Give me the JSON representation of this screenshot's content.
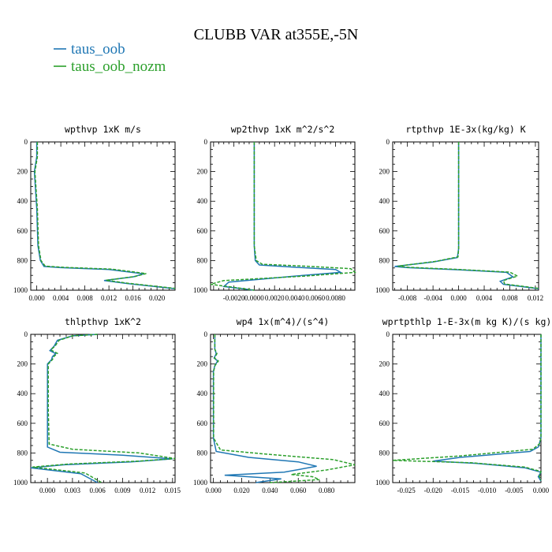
{
  "figure_title": "CLUBB VAR at355E,-5N",
  "colors": {
    "taus_oob": "#1f77b4",
    "taus_oob_nozm": "#2ca02c"
  },
  "legend": [
    {
      "label": "taus_oob",
      "color": "#1f77b4",
      "dashed": false
    },
    {
      "label": "taus_oob_nozm",
      "color": "#2ca02c",
      "dashed": true
    }
  ],
  "chart_data": [
    {
      "type": "line",
      "title": "wpthvp  1xK m/s",
      "xlim": [
        -0.001,
        0.023
      ],
      "ylim": [
        1000,
        0
      ],
      "x_ticks": [
        "0.000",
        "0.004",
        "0.008",
        "0.012",
        "0.016",
        "0.020"
      ],
      "x_tick_values": [
        0,
        0.004,
        0.008,
        0.012,
        0.016,
        0.02
      ],
      "y_ticks": [
        "0",
        "200",
        "400",
        "600",
        "800",
        "1000"
      ],
      "series": [
        {
          "name": "taus_oob",
          "points": [
            [
              0.0,
              0
            ],
            [
              0.0,
              100
            ],
            [
              -0.0004,
              200
            ],
            [
              0.0,
              450
            ],
            [
              0.0002,
              700
            ],
            [
              0.0006,
              800
            ],
            [
              0.0012,
              840
            ],
            [
              0.004,
              848
            ],
            [
              0.012,
              860
            ],
            [
              0.0178,
              890
            ],
            [
              0.016,
              910
            ],
            [
              0.0112,
              935
            ],
            [
              0.015,
              955
            ],
            [
              0.023,
              990
            ]
          ]
        },
        {
          "name": "taus_oob_nozm",
          "points": [
            [
              0.0001,
              0
            ],
            [
              0.0001,
              100
            ],
            [
              -0.0003,
              200
            ],
            [
              0.0001,
              450
            ],
            [
              0.0003,
              700
            ],
            [
              0.0007,
              800
            ],
            [
              0.0014,
              838
            ],
            [
              0.0045,
              846
            ],
            [
              0.0125,
              858
            ],
            [
              0.0182,
              888
            ],
            [
              0.0163,
              908
            ],
            [
              0.0115,
              933
            ],
            [
              0.0152,
              953
            ],
            [
              0.023,
              988
            ]
          ]
        }
      ]
    },
    {
      "type": "line",
      "title": "wp2thvp  1xK m^2/s^2",
      "xlim": [
        -0.0043,
        0.0099
      ],
      "ylim": [
        1000,
        0
      ],
      "x_ticks": [
        "-0.0020",
        "0.0000",
        "0.0020",
        "0.0040",
        "0.0060",
        "0.0080"
      ],
      "x_tick_values": [
        -0.002,
        0,
        0.002,
        0.004,
        0.006,
        0.008
      ],
      "y_ticks": [
        "0",
        "200",
        "400",
        "600",
        "800",
        "1000"
      ],
      "series": [
        {
          "name": "taus_oob",
          "points": [
            [
              0.0,
              0
            ],
            [
              0.0,
              400
            ],
            [
              0.0,
              700
            ],
            [
              0.0001,
              800
            ],
            [
              0.0005,
              830
            ],
            [
              0.004,
              845
            ],
            [
              0.008,
              860
            ],
            [
              0.0085,
              880
            ],
            [
              0.004,
              905
            ],
            [
              -0.0025,
              945
            ],
            [
              -0.003,
              975
            ],
            [
              0.0,
              1000
            ]
          ]
        },
        {
          "name": "taus_oob_nozm",
          "points": [
            [
              0.0,
              0
            ],
            [
              0.0,
              400
            ],
            [
              0.0,
              700
            ],
            [
              0.0002,
              800
            ],
            [
              0.0008,
              825
            ],
            [
              0.005,
              838
            ],
            [
              0.0095,
              855
            ],
            [
              0.0099,
              880
            ],
            [
              0.005,
              905
            ],
            [
              -0.003,
              935
            ],
            [
              -0.0043,
              960
            ],
            [
              -0.001,
              990
            ],
            [
              0.0,
              1000
            ]
          ]
        }
      ]
    },
    {
      "type": "line",
      "title": "rtpthvp  1E-3x(kg/kg) K",
      "xlim": [
        -0.0103,
        0.0125
      ],
      "ylim": [
        1000,
        0
      ],
      "x_ticks": [
        "-0.008",
        "-0.004",
        "0.000",
        "0.004",
        "0.008",
        "0.012"
      ],
      "x_tick_values": [
        -0.008,
        -0.004,
        0,
        0.004,
        0.008,
        0.012
      ],
      "y_ticks": [
        "0",
        "200",
        "400",
        "600",
        "800",
        "1000"
      ],
      "series": [
        {
          "name": "taus_oob",
          "points": [
            [
              0.0,
              0
            ],
            [
              0.0,
              400
            ],
            [
              0.0,
              720
            ],
            [
              -0.0002,
              780
            ],
            [
              -0.004,
              810
            ],
            [
              -0.01,
              840
            ],
            [
              -0.008,
              848
            ],
            [
              0.0,
              862
            ],
            [
              0.0075,
              880
            ],
            [
              0.0085,
              910
            ],
            [
              0.0065,
              940
            ],
            [
              0.007,
              960
            ],
            [
              0.0125,
              990
            ]
          ]
        },
        {
          "name": "taus_oob_nozm",
          "points": [
            [
              0.0,
              0
            ],
            [
              0.0,
              400
            ],
            [
              0.0,
              720
            ],
            [
              -0.0001,
              775
            ],
            [
              -0.0035,
              805
            ],
            [
              -0.0095,
              838
            ],
            [
              -0.0078,
              846
            ],
            [
              0.0,
              860
            ],
            [
              0.008,
              878
            ],
            [
              0.0092,
              905
            ],
            [
              0.007,
              935
            ],
            [
              0.0072,
              958
            ],
            [
              0.0125,
              988
            ]
          ]
        }
      ]
    },
    {
      "type": "line",
      "title": "thlpthvp  1xK^2",
      "xlim": [
        -0.002,
        0.0153
      ],
      "ylim": [
        1000,
        0
      ],
      "x_ticks": [
        "0.000",
        "0.003",
        "0.006",
        "0.009",
        "0.012",
        "0.015"
      ],
      "x_tick_values": [
        0,
        0.003,
        0.006,
        0.009,
        0.012,
        0.015
      ],
      "y_ticks": [
        "0",
        "200",
        "400",
        "600",
        "800",
        "1000"
      ],
      "series": [
        {
          "name": "taus_oob",
          "points": [
            [
              0.006,
              0
            ],
            [
              0.003,
              10
            ],
            [
              0.0012,
              40
            ],
            [
              0.0008,
              80
            ],
            [
              0.0003,
              110
            ],
            [
              0.001,
              130
            ],
            [
              0.0006,
              150
            ],
            [
              0.0005,
              170
            ],
            [
              0.0,
              200
            ],
            [
              0.0,
              500
            ],
            [
              0.0,
              760
            ],
            [
              0.0015,
              795
            ],
            [
              0.009,
              815
            ],
            [
              0.015,
              840
            ],
            [
              0.01,
              860
            ],
            [
              0.002,
              880
            ],
            [
              -0.002,
              900
            ],
            [
              0.004,
              940
            ],
            [
              0.006,
              1000
            ]
          ]
        },
        {
          "name": "taus_oob_nozm",
          "points": [
            [
              0.006,
              0
            ],
            [
              0.003,
              10
            ],
            [
              0.0014,
              40
            ],
            [
              0.0009,
              80
            ],
            [
              0.0004,
              105
            ],
            [
              0.0012,
              128
            ],
            [
              0.0008,
              148
            ],
            [
              0.0006,
              170
            ],
            [
              0.0001,
              200
            ],
            [
              0.0001,
              500
            ],
            [
              0.0002,
              740
            ],
            [
              0.003,
              775
            ],
            [
              0.011,
              800
            ],
            [
              0.0153,
              838
            ],
            [
              0.011,
              855
            ],
            [
              0.0025,
              875
            ],
            [
              -0.0018,
              895
            ],
            [
              0.0045,
              935
            ],
            [
              0.0065,
              1000
            ]
          ]
        }
      ]
    },
    {
      "type": "line",
      "title": "wp4  1x(m^4)/(s^4)",
      "xlim": [
        -0.002,
        0.1
      ],
      "ylim": [
        1000,
        0
      ],
      "x_ticks": [
        "0.000",
        "0.020",
        "0.040",
        "0.060",
        "0.080"
      ],
      "x_tick_values": [
        0,
        0.02,
        0.04,
        0.06,
        0.08
      ],
      "y_ticks": [
        "0",
        "200",
        "400",
        "600",
        "800",
        "1000"
      ],
      "series": [
        {
          "name": "taus_oob",
          "points": [
            [
              0.001,
              0
            ],
            [
              0.001,
              100
            ],
            [
              0.002,
              130
            ],
            [
              0.0005,
              160
            ],
            [
              0.003,
              180
            ],
            [
              0.001,
              210
            ],
            [
              0.0,
              250
            ],
            [
              0.0,
              700
            ],
            [
              0.002,
              790
            ],
            [
              0.025,
              830
            ],
            [
              0.06,
              860
            ],
            [
              0.073,
              890
            ],
            [
              0.05,
              930
            ],
            [
              0.008,
              950
            ],
            [
              0.048,
              975
            ],
            [
              0.03,
              1000
            ]
          ]
        },
        {
          "name": "taus_oob_nozm",
          "points": [
            [
              0.001,
              0
            ],
            [
              0.001,
              100
            ],
            [
              0.0025,
              130
            ],
            [
              0.0008,
              160
            ],
            [
              0.0035,
              180
            ],
            [
              0.0012,
              210
            ],
            [
              0.0002,
              250
            ],
            [
              0.0002,
              700
            ],
            [
              0.005,
              780
            ],
            [
              0.04,
              810
            ],
            [
              0.085,
              845
            ],
            [
              0.1,
              880
            ],
            [
              0.08,
              915
            ],
            [
              0.055,
              945
            ],
            [
              0.07,
              960
            ],
            [
              0.075,
              980
            ],
            [
              0.04,
              1000
            ]
          ]
        }
      ]
    },
    {
      "type": "line",
      "title": "wprtpthlp  1-E-3x(m kg K)/(s kg)",
      "xlim": [
        -0.0275,
        0.0
      ],
      "ylim": [
        1000,
        0
      ],
      "x_ticks": [
        "-0.025",
        "-0.020",
        "-0.015",
        "-0.010",
        "-0.005",
        "0.000"
      ],
      "x_tick_values": [
        -0.025,
        -0.02,
        -0.015,
        -0.01,
        -0.005,
        0
      ],
      "y_ticks": [
        "0",
        "200",
        "400",
        "600",
        "800",
        "1000"
      ],
      "series": [
        {
          "name": "taus_oob",
          "points": [
            [
              0.0,
              0
            ],
            [
              0.0,
              400
            ],
            [
              0.0,
              700
            ],
            [
              -0.0005,
              760
            ],
            [
              -0.002,
              790
            ],
            [
              -0.015,
              830
            ],
            [
              -0.02,
              855
            ],
            [
              -0.012,
              870
            ],
            [
              -0.003,
              900
            ],
            [
              0.0,
              930
            ],
            [
              -0.0005,
              960
            ],
            [
              0.0,
              990
            ]
          ]
        },
        {
          "name": "taus_oob_nozm",
          "points": [
            [
              0.0,
              0
            ],
            [
              0.0,
              400
            ],
            [
              0.0,
              700
            ],
            [
              -0.0003,
              740
            ],
            [
              -0.0015,
              775
            ],
            [
              -0.015,
              820
            ],
            [
              -0.0275,
              850
            ],
            [
              -0.013,
              866
            ],
            [
              -0.003,
              895
            ],
            [
              0.0,
              925
            ],
            [
              -0.0003,
              955
            ],
            [
              0.0,
              985
            ]
          ]
        }
      ]
    }
  ]
}
